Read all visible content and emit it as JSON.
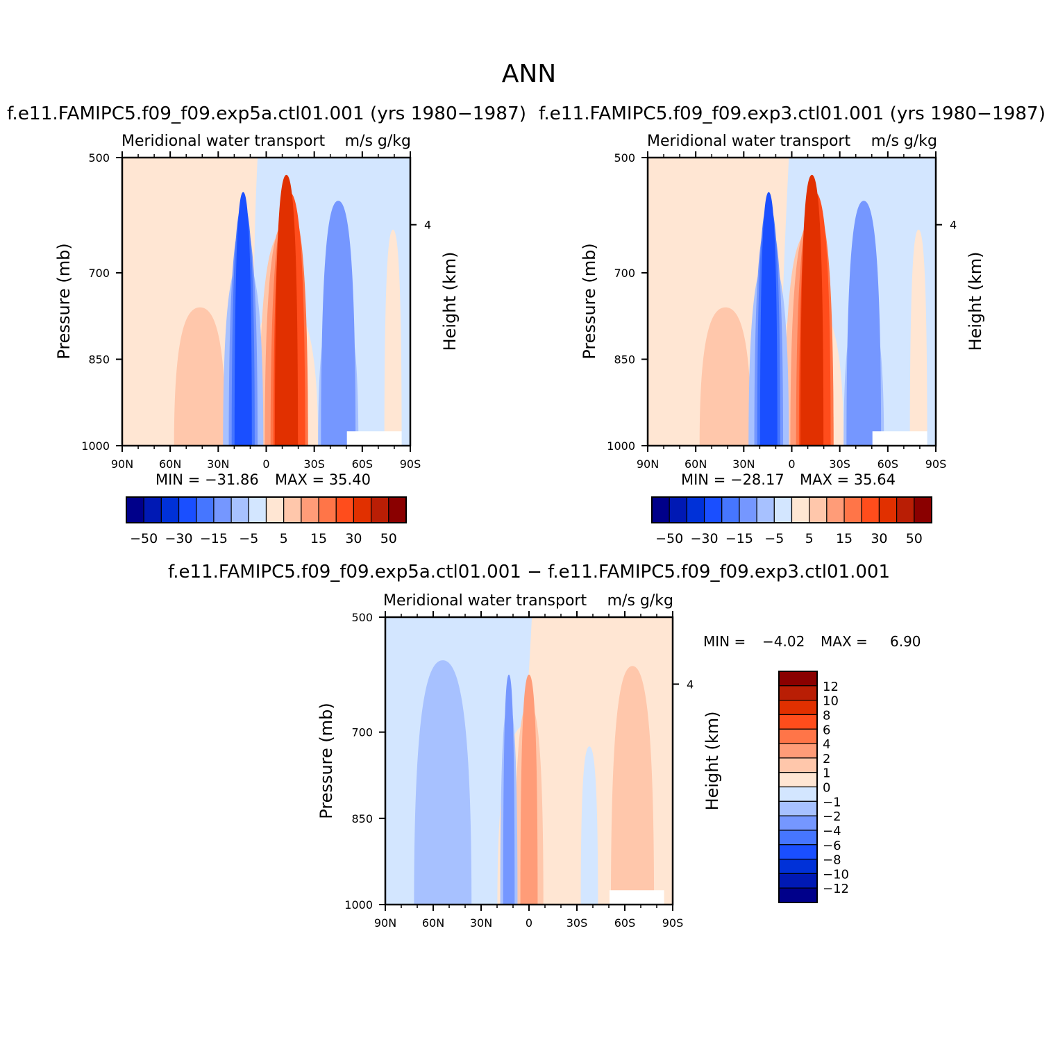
{
  "figure": {
    "title": "ANN"
  },
  "colors": {
    "neg": [
      "#00008a",
      "#0019b4",
      "#0031d8",
      "#1a4fff",
      "#4676ff",
      "#7597ff",
      "#a7c1ff",
      "#d3e6ff"
    ],
    "pos": [
      "#ffe6d3",
      "#ffc7ab",
      "#ff9c78",
      "#ff7548",
      "#ff4d1c",
      "#e13000",
      "#b91e05",
      "#8a0000"
    ]
  },
  "chart_data": [
    {
      "type": "contour",
      "header": "f.e11.FAMIPC5.f09_f09.exp5a.ctl01.001 (yrs 1980−1987)",
      "left_title": "Meridional water transport",
      "right_title": "m/s g/kg",
      "ylabel": "Pressure (mb)",
      "y2label": "Height (km)",
      "x_ticks": [
        "90N",
        "60N",
        "30N",
        "0",
        "30S",
        "60S",
        "90S"
      ],
      "y_ticks": [
        "500",
        "700",
        "850",
        "1000"
      ],
      "y2_ticks": [
        "4"
      ],
      "min_label": "MIN = −31.86",
      "max_label": "MAX =  35.40",
      "min": -31.86,
      "max": 35.4,
      "colorbar_labels": [
        "−50",
        "−30",
        "−15",
        "−5",
        "5",
        "15",
        "30",
        "50"
      ]
    },
    {
      "type": "contour",
      "header": "f.e11.FAMIPC5.f09_f09.exp3.ctl01.001 (yrs 1980−1987)",
      "left_title": "Meridional water transport",
      "right_title": "m/s g/kg",
      "ylabel": "Pressure (mb)",
      "y2label": "Height (km)",
      "x_ticks": [
        "90N",
        "60N",
        "30N",
        "0",
        "30S",
        "60S",
        "90S"
      ],
      "y_ticks": [
        "500",
        "700",
        "850",
        "1000"
      ],
      "y2_ticks": [
        "4"
      ],
      "min_label": "MIN = −28.17",
      "max_label": "MAX =  35.64",
      "min": -28.17,
      "max": 35.64,
      "colorbar_labels": [
        "−50",
        "−30",
        "−15",
        "−5",
        "5",
        "15",
        "30",
        "50"
      ]
    },
    {
      "type": "contour",
      "header": "f.e11.FAMIPC5.f09_f09.exp5a.ctl01.001 − f.e11.FAMIPC5.f09_f09.exp3.ctl01.001",
      "left_title": "Meridional water transport",
      "right_title": "m/s g/kg",
      "ylabel": "Pressure (mb)",
      "y2label": "Height (km)",
      "x_ticks": [
        "90N",
        "60N",
        "30N",
        "0",
        "30S",
        "60S",
        "90S"
      ],
      "y_ticks": [
        "500",
        "700",
        "850",
        "1000"
      ],
      "y2_ticks": [
        "4"
      ],
      "min_label": "MIN =",
      "min_value": "−4.02",
      "max_label": "MAX =",
      "max_value": "6.90",
      "min": -4.02,
      "max": 6.9,
      "colorbar_labels": [
        "12",
        "10",
        "8",
        "6",
        "4",
        "2",
        "1",
        "0",
        "−1",
        "−2",
        "−4",
        "−6",
        "−8",
        "−10",
        "−12"
      ]
    }
  ]
}
